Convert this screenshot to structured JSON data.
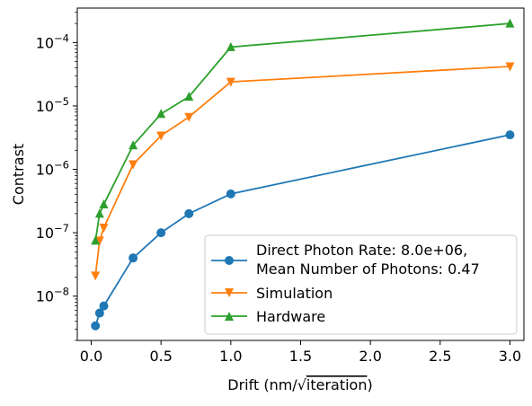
{
  "chart_data": {
    "type": "line",
    "title": "",
    "xlabel": "Drift (nm/√iteration)",
    "xlabel_parts": {
      "prefix": "Drift (nm/",
      "radical": "√",
      "radicand": "iteration",
      "suffix": ")"
    },
    "ylabel": "Contrast",
    "xlim": [
      -0.1,
      3.1
    ],
    "ylim": [
      2e-09,
      0.00035
    ],
    "yscale": "log",
    "grid": false,
    "legend_position": "lower-right",
    "x_ticks": [
      0.0,
      0.5,
      1.0,
      1.5,
      2.0,
      2.5,
      3.0
    ],
    "x_tick_labels": [
      "0.0",
      "0.5",
      "1.0",
      "1.5",
      "2.0",
      "2.5",
      "3.0"
    ],
    "y_ticks": [
      {
        "exp": -8,
        "label_base": "10",
        "label_exp": "−8"
      },
      {
        "exp": -7,
        "label_base": "10",
        "label_exp": "−7"
      },
      {
        "exp": -6,
        "label_base": "10",
        "label_exp": "−6"
      },
      {
        "exp": -5,
        "label_base": "10",
        "label_exp": "−5"
      },
      {
        "exp": -4,
        "label_base": "10",
        "label_exp": "−4"
      }
    ],
    "x": [
      0.03,
      0.06,
      0.09,
      0.3,
      0.5,
      0.7,
      1.0,
      3.0
    ],
    "series": [
      {
        "name": "Direct Photon Rate: 8.0e+06,",
        "name_line2": "Mean Number of Photons: 0.47",
        "color": "#1f77b4",
        "marker": "circle",
        "values": [
          3.4e-09,
          5.4e-09,
          7e-09,
          4e-08,
          1e-07,
          2e-07,
          4.1e-07,
          3.5e-06
        ]
      },
      {
        "name": "Simulation",
        "color": "#ff7f0e",
        "marker": "triangle-down",
        "values": [
          2.1e-08,
          7.5e-08,
          1.2e-07,
          1.2e-06,
          3.4e-06,
          6.7e-06,
          2.4e-05,
          4.2e-05
        ]
      },
      {
        "name": "Hardware",
        "color": "#2ca02c",
        "marker": "triangle-up",
        "values": [
          7.5e-08,
          2e-07,
          2.8e-07,
          2.4e-06,
          7.5e-06,
          1.4e-05,
          8.5e-05,
          0.0002
        ]
      }
    ]
  }
}
